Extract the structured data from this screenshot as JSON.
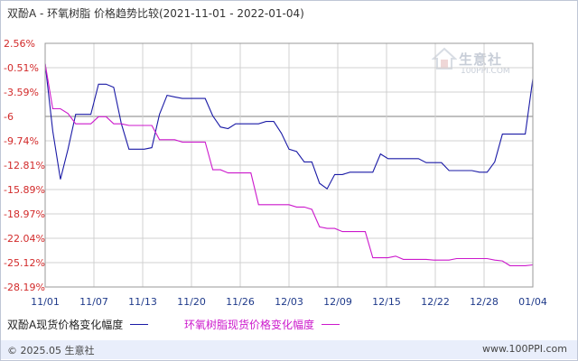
{
  "title": "双酚A - 环氧树脂 价格趋势比较(2021-11-01 - 2022-01-04)",
  "watermark": {
    "name": "生意社",
    "url": "100PPI.COM"
  },
  "footer": {
    "copyright": "© 2025.05 生意社",
    "site": "www.100PPI.com"
  },
  "colors": {
    "series1": "#1a1aa6",
    "series2": "#cc19cc",
    "grid": "#d0d0d0",
    "zero": "#808080"
  },
  "chart_data": {
    "type": "line",
    "title": "双酚A - 环氧树脂 价格趋势比较(2021-11-01 - 2022-01-04)",
    "xlabel": "",
    "ylabel": "",
    "ylim": [
      -28.19,
      2.56
    ],
    "grid": true,
    "legend_position": "bottom",
    "y_ticks": [
      "2.56%",
      "-0.51%",
      "-3.59%",
      "-6",
      "-9.74%",
      "-12.81%",
      "-15.89%",
      "-18.97%",
      "-22.04%",
      "-25.12%",
      "-28.19%"
    ],
    "x_ticks": [
      "11/01",
      "11/07",
      "11/13",
      "11/20",
      "11/26",
      "12/03",
      "12/09",
      "12/15",
      "12/22",
      "12/28",
      "01/04"
    ],
    "x_count": 65,
    "series": [
      {
        "name": "双酚A现货价格变化幅度",
        "color": "#1a1aa6",
        "points": [
          [
            0,
            0
          ],
          [
            1,
            -8.5
          ],
          [
            2,
            -14.6
          ],
          [
            3,
            -10.8
          ],
          [
            4,
            -6.4
          ],
          [
            5,
            -6.4
          ],
          [
            6,
            -6.4
          ],
          [
            7,
            -2.6
          ],
          [
            8,
            -2.6
          ],
          [
            9,
            -3.0
          ],
          [
            10,
            -7.6
          ],
          [
            11,
            -10.8
          ],
          [
            12,
            -10.8
          ],
          [
            13,
            -10.8
          ],
          [
            14,
            -10.6
          ],
          [
            15,
            -6.4
          ],
          [
            16,
            -4.0
          ],
          [
            17,
            -4.2
          ],
          [
            18,
            -4.4
          ],
          [
            19,
            -4.4
          ],
          [
            20,
            -4.4
          ],
          [
            21,
            -4.4
          ],
          [
            22,
            -6.6
          ],
          [
            23,
            -8.0
          ],
          [
            24,
            -8.2
          ],
          [
            25,
            -7.6
          ],
          [
            26,
            -7.6
          ],
          [
            27,
            -7.6
          ],
          [
            28,
            -7.6
          ],
          [
            29,
            -7.3
          ],
          [
            30,
            -7.3
          ],
          [
            31,
            -8.8
          ],
          [
            32,
            -10.8
          ],
          [
            33,
            -11.1
          ],
          [
            34,
            -12.4
          ],
          [
            35,
            -12.4
          ],
          [
            36,
            -15.1
          ],
          [
            37,
            -15.8
          ],
          [
            38,
            -14.0
          ],
          [
            39,
            -14.0
          ],
          [
            40,
            -13.7
          ],
          [
            41,
            -13.7
          ],
          [
            42,
            -13.7
          ],
          [
            43,
            -13.7
          ],
          [
            44,
            -11.4
          ],
          [
            45,
            -12.0
          ],
          [
            46,
            -12.0
          ],
          [
            47,
            -12.0
          ],
          [
            48,
            -12.0
          ],
          [
            49,
            -12.0
          ],
          [
            50,
            -12.5
          ],
          [
            51,
            -12.5
          ],
          [
            52,
            -12.5
          ],
          [
            53,
            -13.5
          ],
          [
            54,
            -13.5
          ],
          [
            55,
            -13.5
          ],
          [
            56,
            -13.5
          ],
          [
            57,
            -13.7
          ],
          [
            58,
            -13.7
          ],
          [
            59,
            -12.4
          ],
          [
            60,
            -8.9
          ],
          [
            61,
            -8.9
          ],
          [
            62,
            -8.9
          ],
          [
            63,
            -8.9
          ],
          [
            64,
            -1.9
          ]
        ]
      },
      {
        "name": "环氧树脂现货价格变化幅度",
        "color": "#cc19cc",
        "points": [
          [
            0,
            0
          ],
          [
            1,
            -5.7
          ],
          [
            2,
            -5.7
          ],
          [
            3,
            -6.3
          ],
          [
            4,
            -7.6
          ],
          [
            5,
            -7.6
          ],
          [
            6,
            -7.6
          ],
          [
            7,
            -6.7
          ],
          [
            8,
            -6.7
          ],
          [
            9,
            -7.6
          ],
          [
            10,
            -7.6
          ],
          [
            11,
            -7.8
          ],
          [
            12,
            -7.8
          ],
          [
            13,
            -7.8
          ],
          [
            14,
            -7.8
          ],
          [
            15,
            -9.6
          ],
          [
            16,
            -9.6
          ],
          [
            17,
            -9.6
          ],
          [
            18,
            -9.9
          ],
          [
            19,
            -9.9
          ],
          [
            20,
            -9.9
          ],
          [
            21,
            -9.9
          ],
          [
            22,
            -13.4
          ],
          [
            23,
            -13.4
          ],
          [
            24,
            -13.8
          ],
          [
            25,
            -13.8
          ],
          [
            26,
            -13.8
          ],
          [
            27,
            -13.8
          ],
          [
            28,
            -17.8
          ],
          [
            29,
            -17.8
          ],
          [
            30,
            -17.8
          ],
          [
            31,
            -17.8
          ],
          [
            32,
            -17.8
          ],
          [
            33,
            -18.1
          ],
          [
            34,
            -18.1
          ],
          [
            35,
            -18.4
          ],
          [
            36,
            -20.6
          ],
          [
            37,
            -20.8
          ],
          [
            38,
            -20.8
          ],
          [
            39,
            -21.2
          ],
          [
            40,
            -21.2
          ],
          [
            41,
            -21.2
          ],
          [
            42,
            -21.2
          ],
          [
            43,
            -24.5
          ],
          [
            44,
            -24.5
          ],
          [
            45,
            -24.5
          ],
          [
            46,
            -24.3
          ],
          [
            47,
            -24.7
          ],
          [
            48,
            -24.7
          ],
          [
            49,
            -24.7
          ],
          [
            50,
            -24.7
          ],
          [
            51,
            -24.8
          ],
          [
            52,
            -24.8
          ],
          [
            53,
            -24.8
          ],
          [
            54,
            -24.6
          ],
          [
            55,
            -24.6
          ],
          [
            56,
            -24.6
          ],
          [
            57,
            -24.6
          ],
          [
            58,
            -24.6
          ],
          [
            59,
            -24.8
          ],
          [
            60,
            -24.9
          ],
          [
            61,
            -25.5
          ],
          [
            62,
            -25.5
          ],
          [
            63,
            -25.5
          ],
          [
            64,
            -25.4
          ]
        ]
      }
    ]
  }
}
